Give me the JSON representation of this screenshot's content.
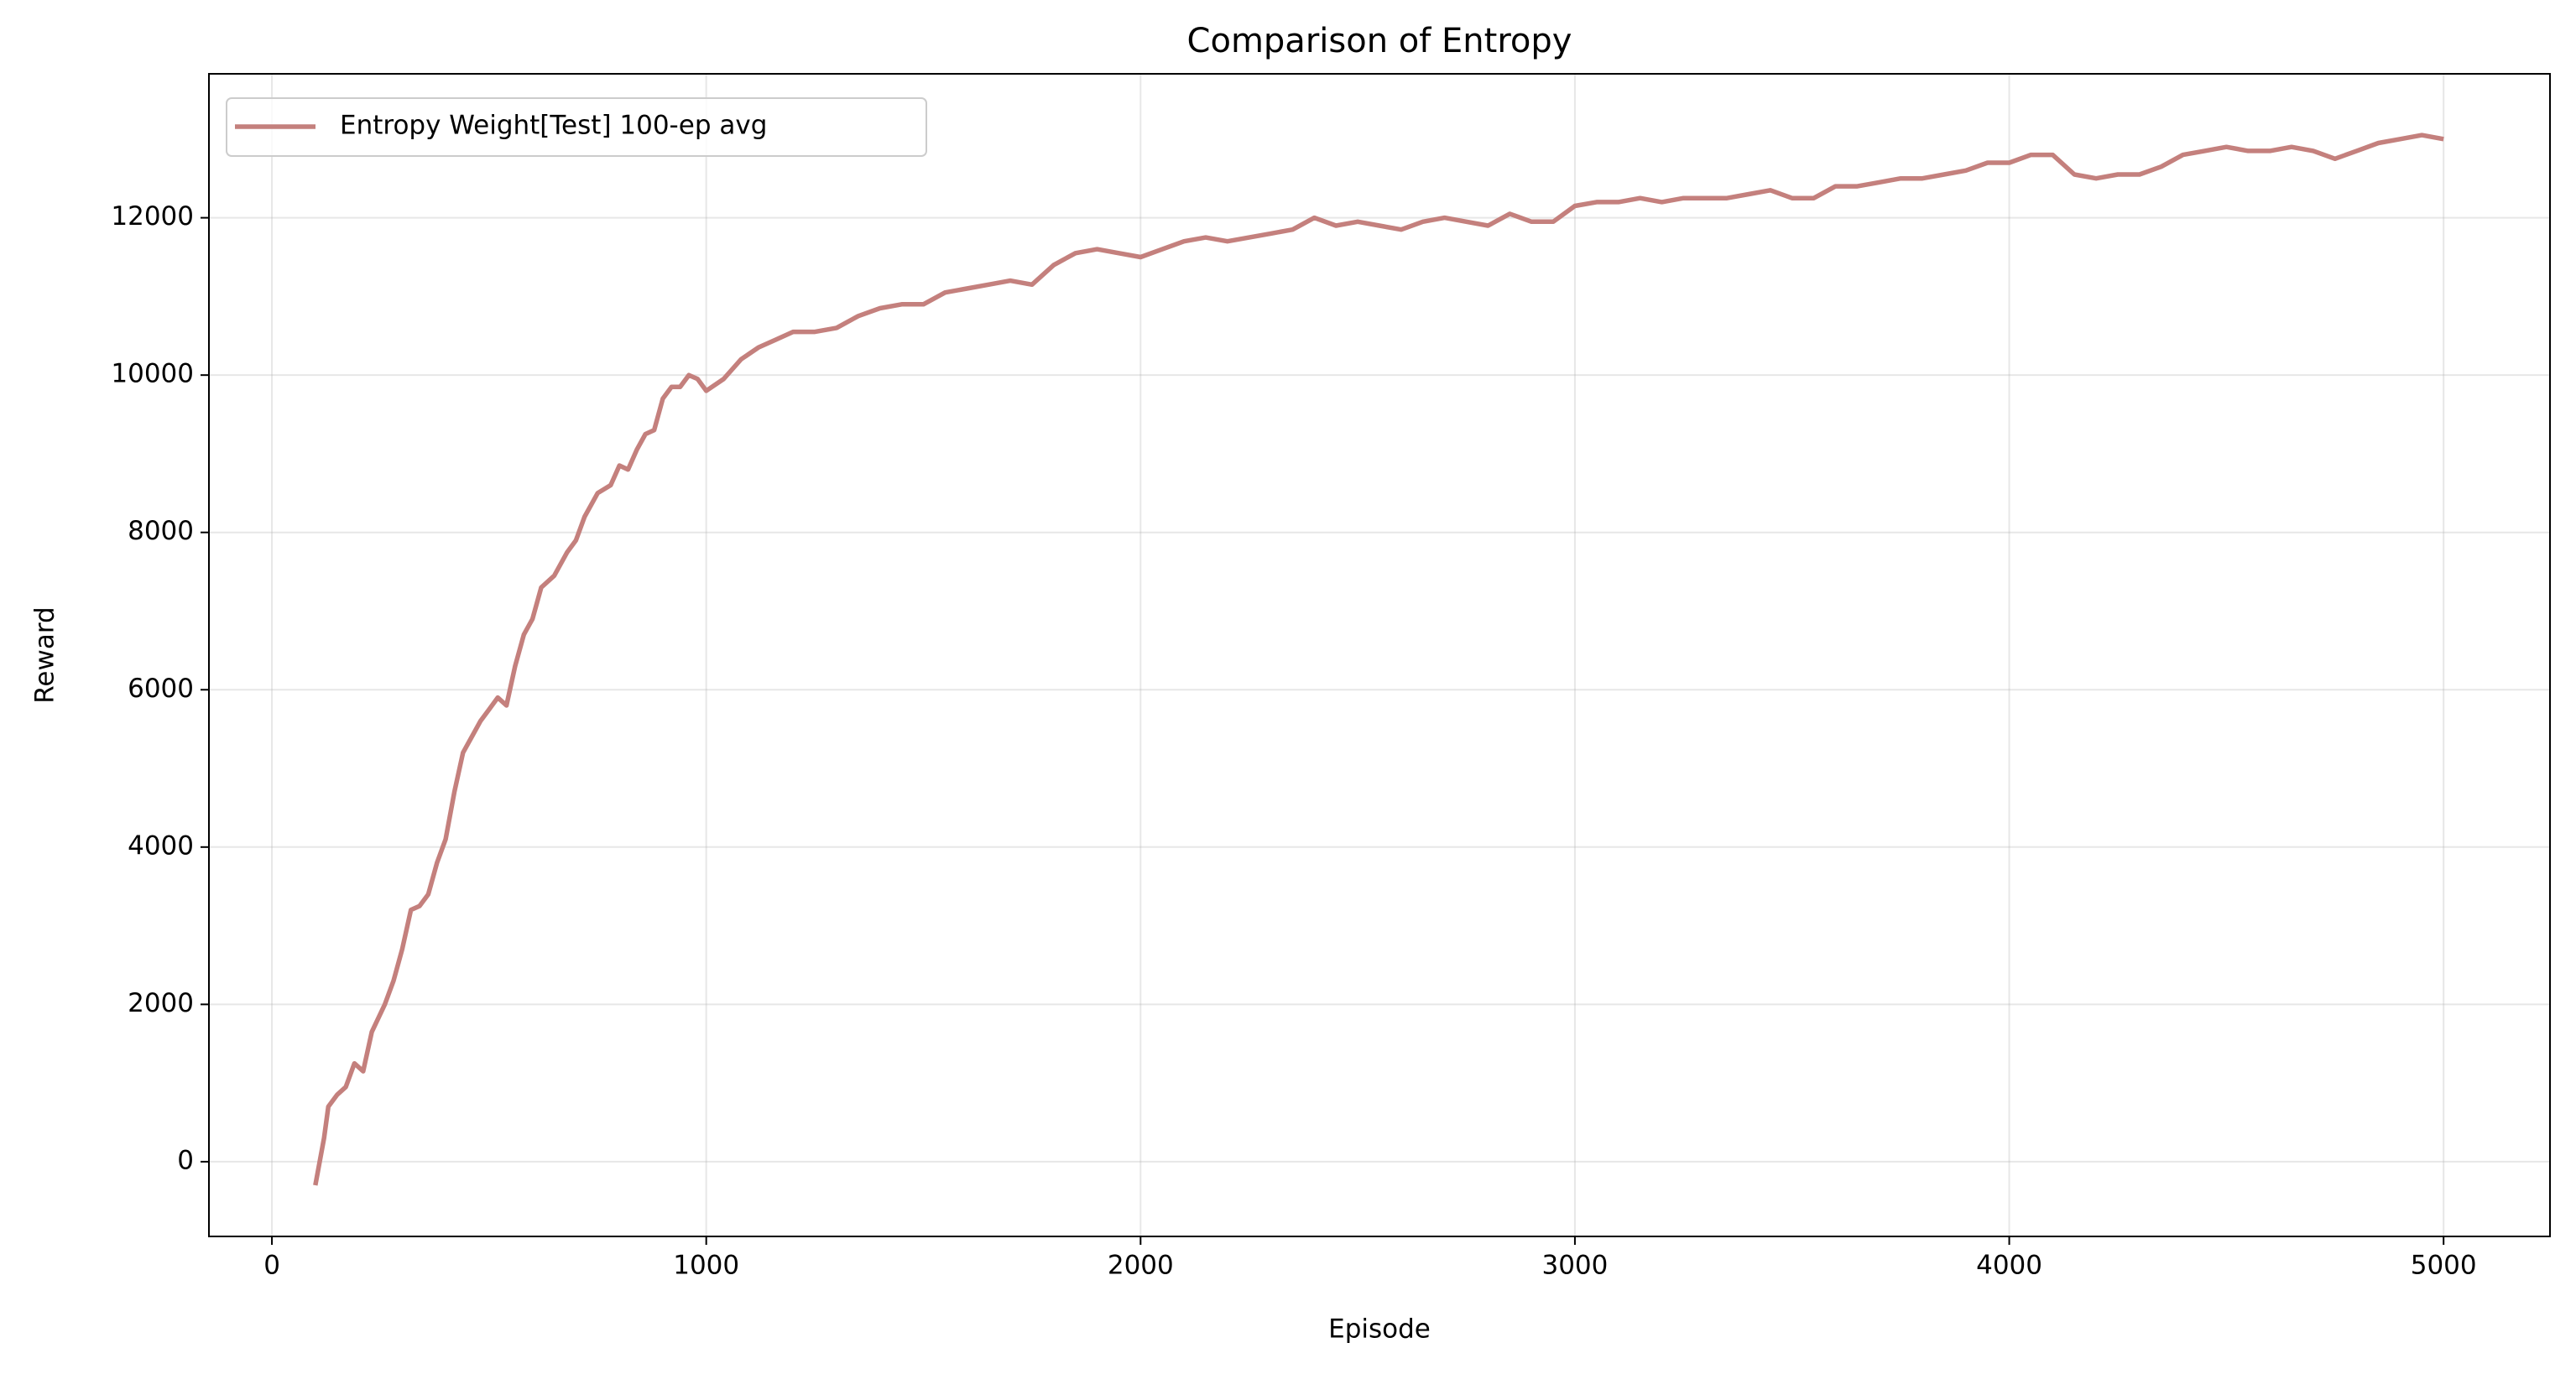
{
  "chart_data": {
    "type": "line",
    "title": "Comparison of Entropy",
    "x_label": "Episode",
    "y_label": "Reward",
    "x": [
      100,
      110,
      120,
      130,
      150,
      170,
      190,
      210,
      230,
      260,
      280,
      300,
      320,
      340,
      360,
      380,
      400,
      420,
      440,
      460,
      480,
      500,
      520,
      540,
      560,
      580,
      600,
      620,
      650,
      680,
      700,
      720,
      750,
      780,
      800,
      820,
      840,
      860,
      880,
      900,
      920,
      940,
      960,
      980,
      1000,
      1040,
      1080,
      1120,
      1160,
      1200,
      1250,
      1300,
      1350,
      1400,
      1450,
      1500,
      1550,
      1600,
      1650,
      1700,
      1750,
      1800,
      1850,
      1900,
      1950,
      2000,
      2050,
      2100,
      2150,
      2200,
      2250,
      2300,
      2350,
      2400,
      2450,
      2500,
      2550,
      2600,
      2650,
      2700,
      2750,
      2800,
      2850,
      2900,
      2950,
      3000,
      3050,
      3100,
      3150,
      3200,
      3250,
      3300,
      3350,
      3400,
      3450,
      3500,
      3550,
      3600,
      3650,
      3700,
      3750,
      3800,
      3850,
      3900,
      3950,
      4000,
      4050,
      4100,
      4150,
      4200,
      4250,
      4300,
      4350,
      4400,
      4450,
      4500,
      4550,
      4600,
      4650,
      4700,
      4750,
      4800,
      4850,
      4900,
      4950,
      5000
    ],
    "series": [
      {
        "name": "Entropy Weight[Test] 100-ep avg",
        "color": "#c4807d",
        "values": [
          -300,
          0,
          300,
          700,
          850,
          950,
          1250,
          1150,
          1650,
          2000,
          2300,
          2700,
          3200,
          3250,
          3400,
          3800,
          4100,
          4700,
          5200,
          5400,
          5600,
          5750,
          5900,
          5800,
          6300,
          6700,
          6900,
          7300,
          7450,
          7750,
          7900,
          8200,
          8500,
          8600,
          8850,
          8800,
          9050,
          9250,
          9300,
          9700,
          9850,
          9850,
          10000,
          9950,
          9800,
          9950,
          10200,
          10350,
          10450,
          10550,
          10550,
          10600,
          10750,
          10850,
          10900,
          10900,
          11050,
          11100,
          11150,
          11200,
          11150,
          11400,
          11550,
          11600,
          11550,
          11500,
          11600,
          11700,
          11750,
          11700,
          11750,
          11800,
          11850,
          12000,
          11900,
          11950,
          11900,
          11850,
          11950,
          12000,
          11950,
          11900,
          12050,
          11950,
          11950,
          12150,
          12200,
          12200,
          12250,
          12200,
          12250,
          12250,
          12250,
          12300,
          12350,
          12250,
          12250,
          12400,
          12400,
          12450,
          12500,
          12500,
          12550,
          12600,
          12700,
          12700,
          12800,
          12800,
          12550,
          12500,
          12550,
          12550,
          12650,
          12800,
          12850,
          12900,
          12850,
          12850,
          12900,
          12850,
          12750,
          12850,
          12950,
          13000,
          13050,
          13000
        ]
      }
    ],
    "xlim": [
      -145,
      5245
    ],
    "ylim": [
      -950,
      13830
    ],
    "xticks": [
      0,
      1000,
      2000,
      3000,
      4000,
      5000
    ],
    "yticks": [
      0,
      2000,
      4000,
      6000,
      8000,
      10000,
      12000
    ],
    "grid": true,
    "legend": "upper left"
  }
}
